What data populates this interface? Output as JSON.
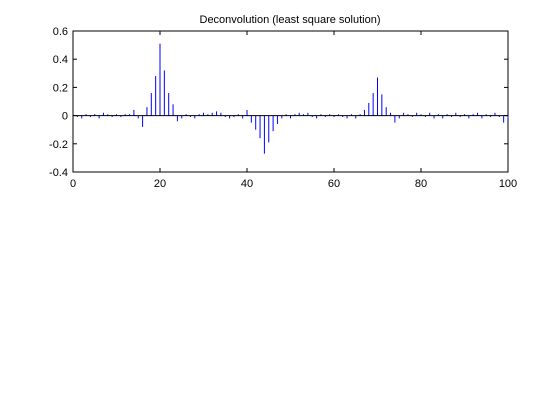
{
  "chart_data": {
    "type": "stem",
    "title": "Deconvolution (least square solution)",
    "xlabel": "",
    "ylabel": "",
    "xlim": [
      0,
      100
    ],
    "ylim": [
      -0.4,
      0.6
    ],
    "xticks": [
      0,
      20,
      40,
      60,
      80,
      100
    ],
    "yticks": [
      -0.4,
      -0.2,
      0,
      0.2,
      0.4,
      0.6
    ],
    "xtick_labels": [
      "0",
      "20",
      "40",
      "60",
      "80",
      "100"
    ],
    "ytick_labels": [
      "-0.4",
      "-0.2",
      "0",
      "0.2",
      "0.4",
      "0.6"
    ],
    "grid": false,
    "series_color": "#0000ff",
    "x": [
      1,
      2,
      3,
      4,
      5,
      6,
      7,
      8,
      9,
      10,
      11,
      12,
      13,
      14,
      15,
      16,
      17,
      18,
      19,
      20,
      21,
      22,
      23,
      24,
      25,
      26,
      27,
      28,
      29,
      30,
      31,
      32,
      33,
      34,
      35,
      36,
      37,
      38,
      39,
      40,
      41,
      42,
      43,
      44,
      45,
      46,
      47,
      48,
      49,
      50,
      51,
      52,
      53,
      54,
      55,
      56,
      57,
      58,
      59,
      60,
      61,
      62,
      63,
      64,
      65,
      66,
      67,
      68,
      69,
      70,
      71,
      72,
      73,
      74,
      75,
      76,
      77,
      78,
      79,
      80,
      81,
      82,
      83,
      84,
      85,
      86,
      87,
      88,
      89,
      90,
      91,
      92,
      93,
      94,
      95,
      96,
      97,
      98,
      99,
      100
    ],
    "values": [
      -0.01,
      -0.02,
      0.01,
      -0.01,
      0.01,
      -0.02,
      0.02,
      0.01,
      -0.01,
      0.01,
      -0.01,
      0.01,
      0.01,
      0.04,
      -0.02,
      -0.08,
      0.06,
      0.16,
      0.28,
      0.51,
      0.32,
      0.16,
      0.08,
      -0.04,
      -0.02,
      0.01,
      -0.01,
      -0.02,
      0.01,
      0.02,
      0.01,
      0.02,
      0.03,
      0.02,
      -0.01,
      -0.02,
      -0.01,
      0.01,
      -0.02,
      0.04,
      -0.05,
      -0.1,
      -0.16,
      -0.27,
      -0.19,
      -0.11,
      -0.06,
      -0.02,
      0.01,
      -0.02,
      0.01,
      0.02,
      0.01,
      0.02,
      -0.01,
      -0.02,
      0.01,
      -0.01,
      0.01,
      -0.01,
      0.01,
      -0.01,
      -0.02,
      0.01,
      -0.02,
      0.01,
      0.04,
      0.09,
      0.16,
      0.27,
      0.15,
      0.06,
      0.02,
      -0.05,
      -0.02,
      0.02,
      0.01,
      -0.01,
      0.02,
      0.01,
      -0.01,
      0.02,
      -0.02,
      0.01,
      -0.02,
      0.01,
      -0.01,
      0.02,
      -0.01,
      0.01,
      -0.02,
      0.01,
      0.02,
      -0.02,
      0.01,
      -0.01,
      0.02,
      -0.01,
      -0.05,
      -0.02
    ]
  }
}
